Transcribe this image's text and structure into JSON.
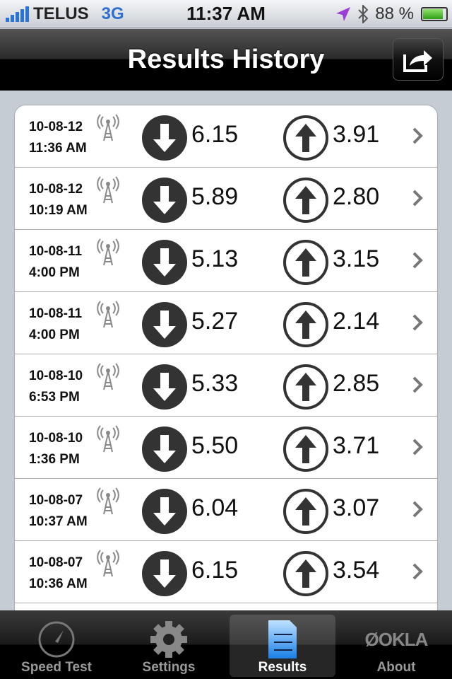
{
  "status": {
    "carrier": "TELUS",
    "network": "3G",
    "time": "11:37 AM",
    "battery": "88 %",
    "battery_level": 88
  },
  "nav": {
    "title": "Results History",
    "share_icon": "share-icon"
  },
  "results": [
    {
      "date": "10-08-12",
      "time": "11:36 AM",
      "download": "6.15",
      "upload": "3.91"
    },
    {
      "date": "10-08-12",
      "time": "10:19 AM",
      "download": "5.89",
      "upload": "2.80"
    },
    {
      "date": "10-08-11",
      "time": "4:00 PM",
      "download": "5.13",
      "upload": "3.15"
    },
    {
      "date": "10-08-11",
      "time": "4:00 PM",
      "download": "5.27",
      "upload": "2.14"
    },
    {
      "date": "10-08-10",
      "time": "6:53 PM",
      "download": "5.33",
      "upload": "2.85"
    },
    {
      "date": "10-08-10",
      "time": "1:36 PM",
      "download": "5.50",
      "upload": "3.71"
    },
    {
      "date": "10-08-07",
      "time": "10:37 AM",
      "download": "6.04",
      "upload": "3.07"
    },
    {
      "date": "10-08-07",
      "time": "10:36 AM",
      "download": "6.15",
      "upload": "3.54"
    }
  ],
  "tabs": [
    {
      "label": "Speed Test"
    },
    {
      "label": "Settings"
    },
    {
      "label": "Results"
    },
    {
      "label": "About"
    }
  ],
  "colors": {
    "accent": "#2a74d9",
    "tab_active": "#ffffff"
  }
}
